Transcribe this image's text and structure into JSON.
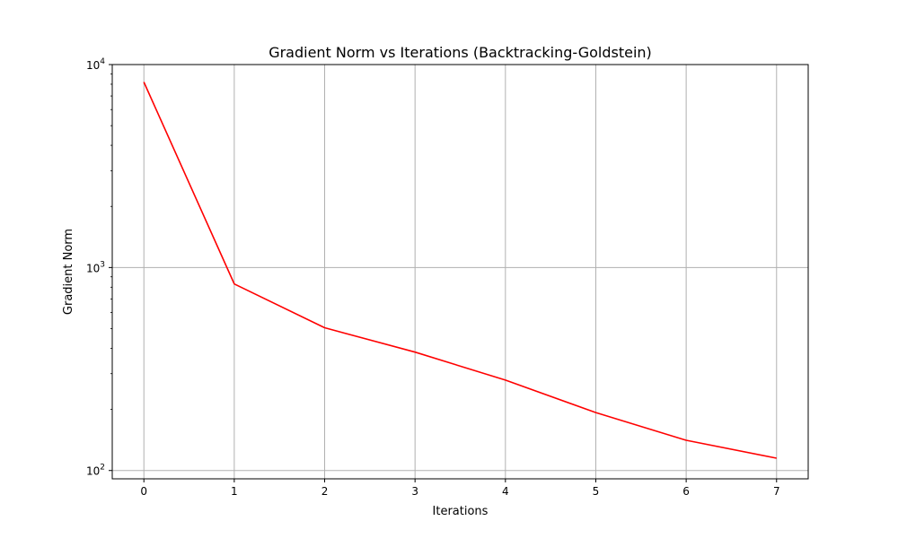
{
  "chart_data": {
    "type": "line",
    "title": "Gradient Norm vs Iterations (Backtracking-Goldstein)",
    "xlabel": "Iterations",
    "ylabel": "Gradient Norm",
    "yscale": "log",
    "xlim": [
      -0.35,
      7.35
    ],
    "ylim": [
      91,
      10000
    ],
    "grid": true,
    "x_ticks": [
      0,
      1,
      2,
      3,
      4,
      5,
      6,
      7
    ],
    "y_ticks": [
      {
        "value": 100,
        "base": "10",
        "exp": "2"
      },
      {
        "value": 1000,
        "base": "10",
        "exp": "3"
      },
      {
        "value": 10000,
        "base": "10",
        "exp": "4"
      }
    ],
    "series": [
      {
        "color": "#ff0000",
        "x": [
          0,
          1,
          2,
          3,
          4,
          5,
          6,
          7
        ],
        "y": [
          8200,
          830,
          505,
          383,
          279,
          193,
          141,
          115
        ]
      }
    ]
  }
}
